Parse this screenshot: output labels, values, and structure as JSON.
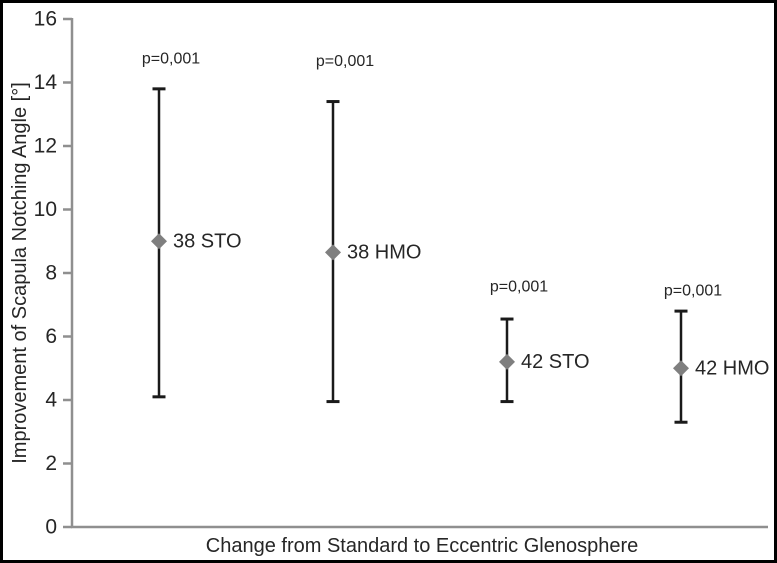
{
  "figure": {
    "background_color": "#ffffff",
    "border_color": "#000000"
  },
  "chart_data": {
    "type": "scatter",
    "title": "",
    "xlabel": "Change from Standard to Eccentric Glenosphere",
    "ylabel": "Improvement of Scapula Notching Angle [°]",
    "ylim": [
      0,
      16
    ],
    "yticks": [
      0,
      2,
      4,
      6,
      8,
      10,
      12,
      14,
      16
    ],
    "grid": false,
    "legend_position": "none",
    "marker_shape": "diamond",
    "points": [
      {
        "label": "38 STO",
        "value": 9.0,
        "ci_low": 4.1,
        "ci_high": 13.8,
        "p_label": "p=0,001"
      },
      {
        "label": "38 HMO",
        "value": 8.65,
        "ci_low": 3.95,
        "ci_high": 13.4,
        "p_label": "p=0,001"
      },
      {
        "label": "42 STO",
        "value": 5.2,
        "ci_low": 3.95,
        "ci_high": 6.55,
        "p_label": "p=0,001"
      },
      {
        "label": "42 HMO",
        "value": 5.0,
        "ci_low": 3.3,
        "ci_high": 6.8,
        "p_label": "p=0,001"
      }
    ],
    "colors": {
      "marker": "#7f7f7f",
      "error_bar": "#1a1a1a",
      "axis": "#8f8f8f",
      "text": "#262626"
    }
  }
}
